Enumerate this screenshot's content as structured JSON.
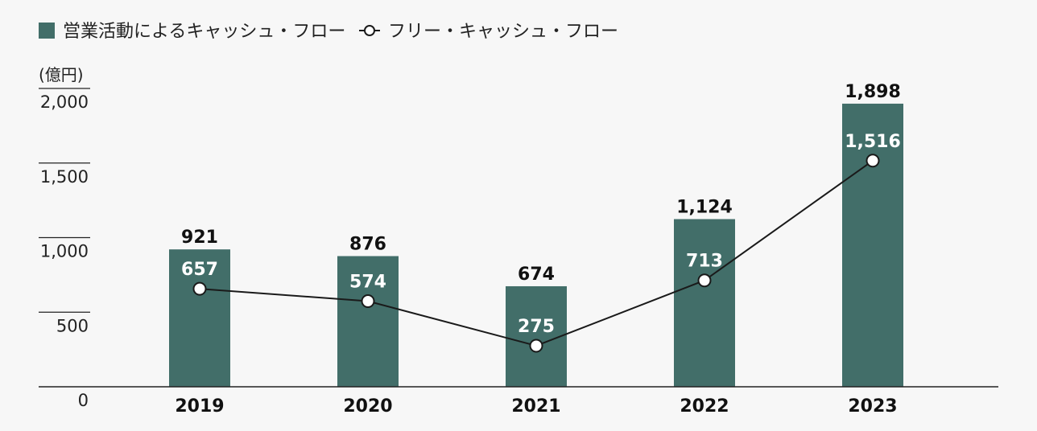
{
  "chart_data": {
    "type": "bar",
    "unit_label": "(億円)",
    "categories": [
      "2019",
      "2020",
      "2021",
      "2022",
      "2023"
    ],
    "series": [
      {
        "name": "営業活動によるキャッシュ・フロー",
        "type": "bar",
        "values": [
          921,
          876,
          674,
          1124,
          1898
        ],
        "value_labels": [
          "921",
          "876",
          "674",
          "1,124",
          "1,898"
        ]
      },
      {
        "name": "フリー・キャッシュ・フロー",
        "type": "line",
        "values": [
          657,
          574,
          275,
          713,
          1516
        ],
        "value_labels": [
          "657",
          "574",
          "275",
          "713",
          "1,516"
        ]
      }
    ],
    "yticks": [
      0,
      500,
      1000,
      1500,
      2000
    ],
    "ytick_labels": [
      "0",
      "500",
      "1,000",
      "1,500",
      "2,000"
    ],
    "ylim": [
      0,
      2000
    ],
    "colors": {
      "bar": "#426e69",
      "line": "#1a1a1a",
      "marker_fill": "#ffffff"
    },
    "legend_position": "top-left",
    "grid": false
  }
}
